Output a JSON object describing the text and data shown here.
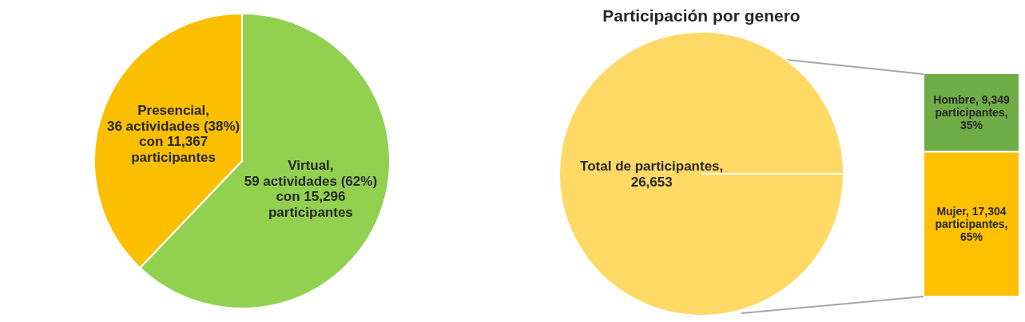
{
  "chart_data": [
    {
      "type": "pie",
      "categories": [
        "Presencial",
        "Virtual"
      ],
      "values": [
        36,
        59
      ],
      "colors": [
        "#fbbf00",
        "#92d050"
      ],
      "value_labels": [
        ",\n36 actividades (38%)\ncon 11,367\nparticipantes",
        ",\n59 actividades (62%)\ncon 15,296\nparticipantes"
      ]
    },
    {
      "type": "pie",
      "title": "Participación por genero",
      "categories": [
        "Total de participantes"
      ],
      "values": [
        26653
      ],
      "colors": [
        "#ffd966"
      ],
      "value_labels": [
        ",\n26,653"
      ]
    },
    {
      "type": "bar",
      "stacked": true,
      "categories": [
        null
      ],
      "series": [
        {
          "color": "#ffc000",
          "values": [
            17304
          ],
          "value_labels": [
            "Mujer, 17,304\nparticipantes,\n65%"
          ]
        },
        {
          "color": "#70ad47",
          "values": [
            9349
          ],
          "value_labels": [
            "Hombre, 9,349\nparticipantes,\n35%"
          ]
        }
      ]
    }
  ]
}
